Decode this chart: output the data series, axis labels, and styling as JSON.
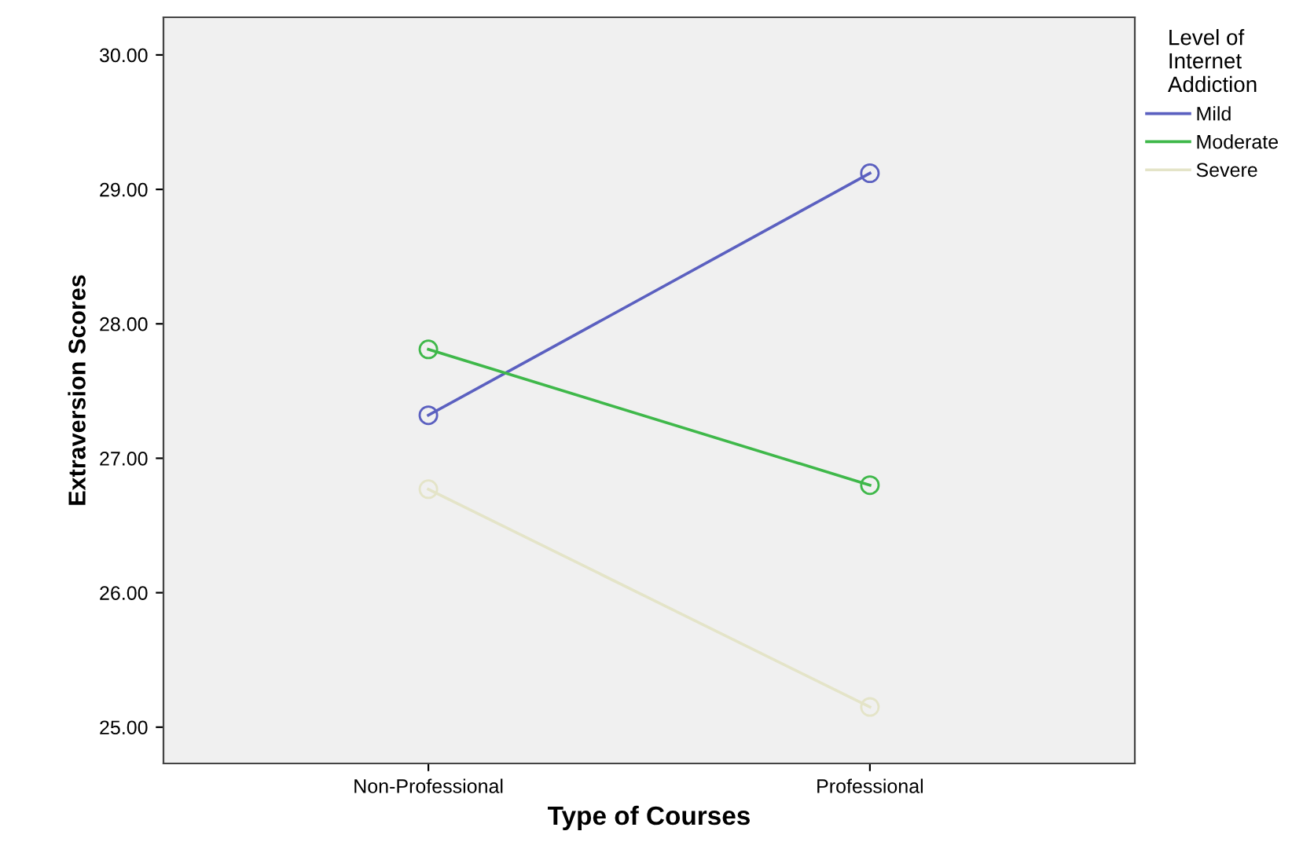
{
  "chart_data": {
    "type": "line",
    "xlabel": "Type of Courses",
    "ylabel": "Extraversion Scores",
    "legend_title": "Level of\nInternet\nAddiction",
    "categories": [
      "Non-Professional",
      "Professional"
    ],
    "series": [
      {
        "name": "Mild",
        "color": "#5b60c0",
        "values": [
          27.32,
          29.12
        ]
      },
      {
        "name": "Moderate",
        "color": "#3fb84a",
        "values": [
          27.81,
          26.8
        ]
      },
      {
        "name": "Severe",
        "color": "#e4e4c8",
        "values": [
          26.77,
          25.15
        ]
      }
    ],
    "ylim": [
      24.73,
      30.28
    ],
    "yticks": [
      {
        "value": 25,
        "label": "25.00"
      },
      {
        "value": 26,
        "label": "26.00"
      },
      {
        "value": 27,
        "label": "27.00"
      },
      {
        "value": 28,
        "label": "28.00"
      },
      {
        "value": 29,
        "label": "29.00"
      },
      {
        "value": 30,
        "label": "30.00"
      }
    ],
    "grid": false,
    "legend": "top right",
    "marker": "circle",
    "line_style": "solid"
  }
}
